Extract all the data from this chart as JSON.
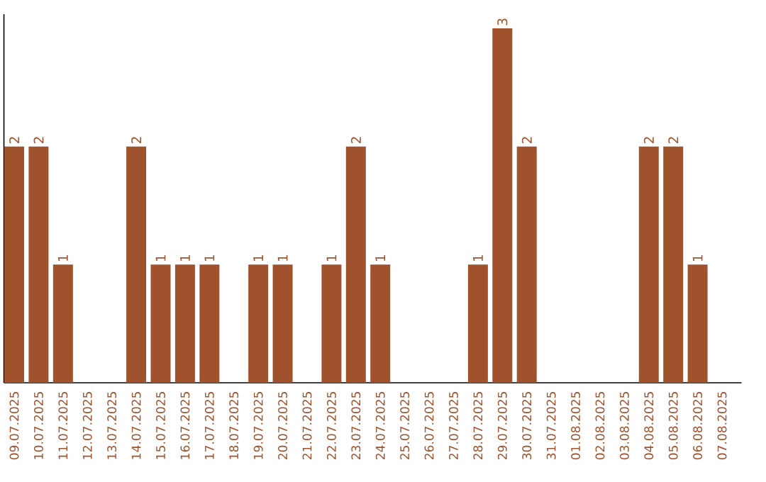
{
  "chart_data": {
    "type": "bar",
    "categories": [
      "09.07.2025",
      "10.07.2025",
      "11.07.2025",
      "12.07.2025",
      "13.07.2025",
      "14.07.2025",
      "15.07.2025",
      "16.07.2025",
      "17.07.2025",
      "18.07.2025",
      "19.07.2025",
      "20.07.2025",
      "21.07.2025",
      "22.07.2025",
      "23.07.2025",
      "24.07.2025",
      "25.07.2025",
      "26.07.2025",
      "27.07.2025",
      "28.07.2025",
      "29.07.2025",
      "30.07.2025",
      "31.07.2025",
      "01.08.2025",
      "02.08.2025",
      "03.08.2025",
      "04.08.2025",
      "05.08.2025",
      "06.08.2025",
      "07.08.2025"
    ],
    "values": [
      2,
      2,
      1,
      0,
      0,
      2,
      1,
      1,
      1,
      0,
      1,
      1,
      0,
      1,
      2,
      1,
      0,
      0,
      0,
      1,
      3,
      2,
      0,
      0,
      0,
      0,
      2,
      2,
      1,
      0
    ],
    "value_labels": [
      "2",
      "2",
      "1",
      null,
      null,
      "2",
      "1",
      "1",
      "1",
      null,
      "1",
      "1",
      null,
      "1",
      "2",
      "1",
      null,
      null,
      null,
      "1",
      "3",
      "2",
      null,
      null,
      null,
      null,
      "2",
      "2",
      "1",
      null
    ],
    "color": "#a0522d"
  }
}
